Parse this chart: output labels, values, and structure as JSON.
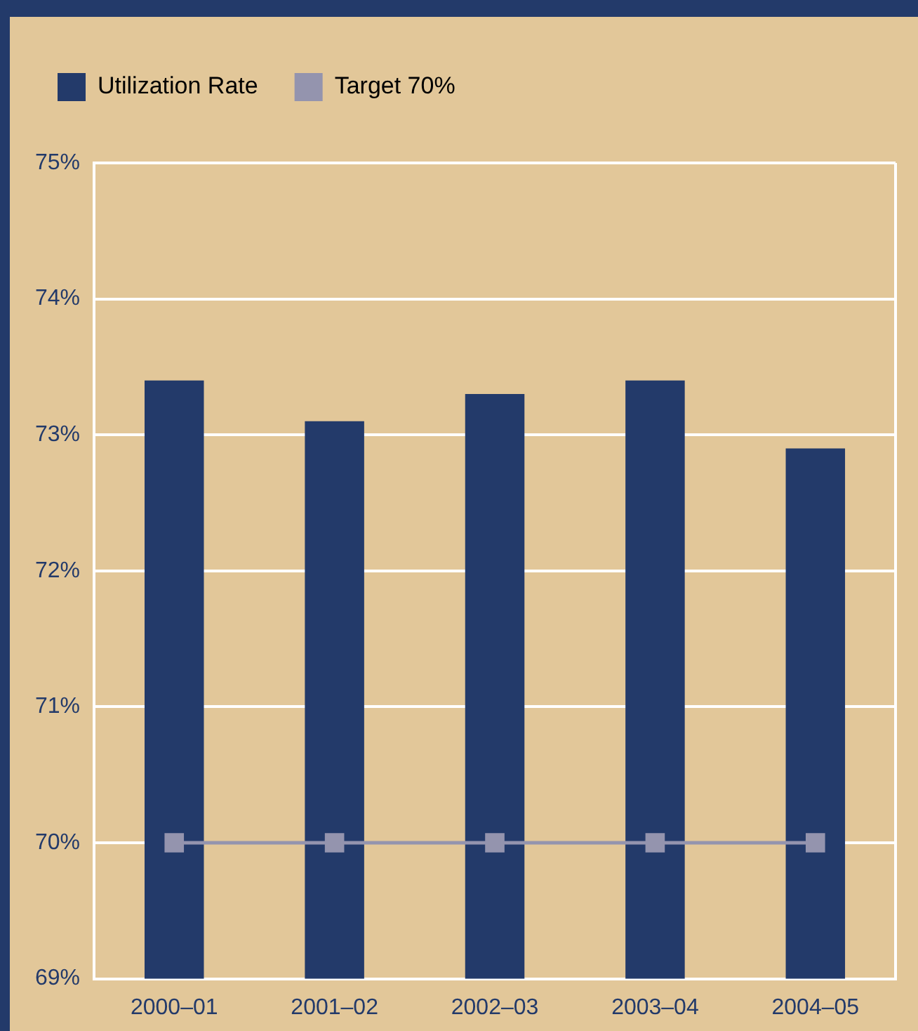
{
  "chart_data": {
    "type": "bar",
    "categories": [
      "2000–01",
      "2001–02",
      "2002–03",
      "2003–04",
      "2004–05"
    ],
    "series": [
      {
        "name": "Utilization Rate",
        "color": "#233a6a",
        "values": [
          73.4,
          73.1,
          73.3,
          73.4,
          72.9
        ]
      },
      {
        "name": "Target 70%",
        "type": "line",
        "color": "#9494ae",
        "values": [
          70,
          70,
          70,
          70,
          70
        ]
      }
    ],
    "ylim": [
      69,
      75
    ],
    "yticks": [
      {
        "value": 69,
        "label": "69%"
      },
      {
        "value": 70,
        "label": "70%"
      },
      {
        "value": 71,
        "label": "71%"
      },
      {
        "value": 72,
        "label": "72%"
      },
      {
        "value": 73,
        "label": "73%"
      },
      {
        "value": 74,
        "label": "74%"
      },
      {
        "value": 75,
        "label": "75%"
      }
    ],
    "grid": "y",
    "legend": "top left",
    "marker": "square"
  }
}
